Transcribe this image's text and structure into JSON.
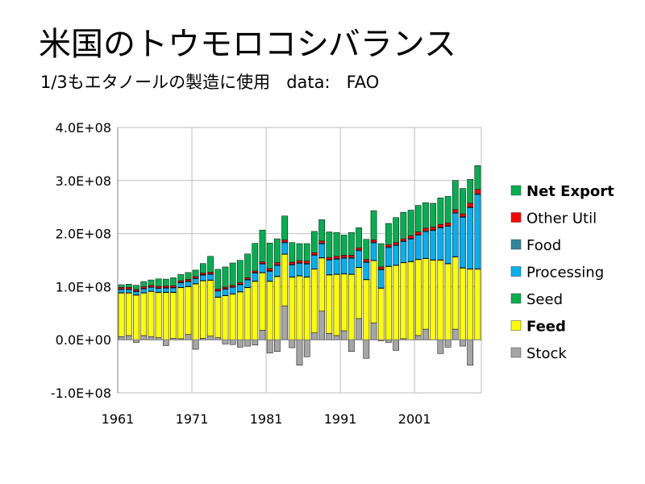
{
  "title": "米国のトウモロコシバランス",
  "subtitle": "1/3もエタノールの製造に使用   data:   FAO",
  "chart_data": {
    "type": "bar",
    "stacked": true,
    "title": "米国のトウモロコシバランス",
    "subtitle": "1/3もエタノールの製造に使用   data:   FAO",
    "xlabel": "",
    "ylabel": "",
    "ylim": [
      -100000000,
      400000000
    ],
    "yticks": [
      -100000000,
      0,
      100000000,
      200000000,
      300000000,
      400000000
    ],
    "ytick_labels": [
      "-1.0E+08",
      "0.0E+00",
      "1.0E+08",
      "2.0E+08",
      "3.0E+08",
      "4.0E+08"
    ],
    "xtick_labels": [
      "1961",
      "1971",
      "1981",
      "1991",
      "2001"
    ],
    "grid": true,
    "legend_position": "right",
    "categories": [
      1961,
      1962,
      1963,
      1964,
      1965,
      1966,
      1967,
      1968,
      1969,
      1970,
      1971,
      1972,
      1973,
      1974,
      1975,
      1976,
      1977,
      1978,
      1979,
      1980,
      1981,
      1982,
      1983,
      1984,
      1985,
      1986,
      1987,
      1988,
      1989,
      1990,
      1991,
      1992,
      1993,
      1994,
      1995,
      1996,
      1997,
      1998,
      1999,
      2000,
      2001,
      2002,
      2003,
      2004,
      2005,
      2006,
      2007,
      2008,
      2009
    ],
    "series": [
      {
        "name": "Stock",
        "color": "#a6a6a6",
        "values": [
          6000000,
          8000000,
          -5000000,
          8000000,
          6000000,
          4000000,
          -11000000,
          3000000,
          2000000,
          10000000,
          -18000000,
          3000000,
          7000000,
          4000000,
          -8000000,
          -9000000,
          -14000000,
          -12000000,
          -10000000,
          18000000,
          -25000000,
          -22000000,
          64000000,
          -15000000,
          -48000000,
          -32000000,
          13000000,
          54000000,
          12000000,
          8000000,
          17000000,
          -22000000,
          40000000,
          -35000000,
          32000000,
          -2000000,
          -5000000,
          -20000000,
          2000000,
          0,
          8000000,
          20000000,
          0,
          -26000000,
          -14000000,
          20000000,
          -12000000,
          -48000000,
          0
        ]
      },
      {
        "name": "Feed",
        "color": "#ffff00",
        "values": [
          82000000,
          80000000,
          84000000,
          80000000,
          85000000,
          85000000,
          89000000,
          86000000,
          96000000,
          90000000,
          105000000,
          108000000,
          105000000,
          76000000,
          83000000,
          86000000,
          90000000,
          98000000,
          110000000,
          108000000,
          110000000,
          119000000,
          97000000,
          118000000,
          120000000,
          118000000,
          120000000,
          100000000,
          110000000,
          115000000,
          107000000,
          123000000,
          96000000,
          113000000,
          117000000,
          97000000,
          138000000,
          140000000,
          143000000,
          147000000,
          143000000,
          133000000,
          150000000,
          150000000,
          143000000,
          136000000,
          135000000,
          133000000,
          133000000
        ]
      },
      {
        "name": "Seed",
        "color": "#00b050",
        "values": [
          700000,
          700000,
          700000,
          700000,
          700000,
          700000,
          700000,
          700000,
          700000,
          700000,
          700000,
          700000,
          700000,
          700000,
          700000,
          700000,
          700000,
          700000,
          700000,
          700000,
          700000,
          700000,
          700000,
          700000,
          700000,
          700000,
          700000,
          700000,
          700000,
          700000,
          700000,
          700000,
          700000,
          700000,
          700000,
          700000,
          700000,
          700000,
          700000,
          700000,
          700000,
          700000,
          700000,
          700000,
          700000,
          700000,
          700000,
          700000,
          700000
        ]
      },
      {
        "name": "Processing",
        "color": "#00b0f0",
        "values": [
          6000000,
          6000000,
          6000000,
          7000000,
          7000000,
          7000000,
          7500000,
          8000000,
          8500000,
          9000000,
          9500000,
          10000000,
          10500000,
          11000000,
          11500000,
          12000000,
          13000000,
          14000000,
          15000000,
          16000000,
          18000000,
          20000000,
          21000000,
          22000000,
          23000000,
          24000000,
          25000000,
          26000000,
          27000000,
          28000000,
          29000000,
          30000000,
          31000000,
          32000000,
          33000000,
          34000000,
          35000000,
          37000000,
          39000000,
          42000000,
          45000000,
          50000000,
          55000000,
          60000000,
          70000000,
          82000000,
          95000000,
          115000000,
          140000000
        ]
      },
      {
        "name": "Food",
        "color": "#31859c",
        "values": [
          1000000,
          1000000,
          1000000,
          1000000,
          1000000,
          1000000,
          1000000,
          1000000,
          1000000,
          1000000,
          1000000,
          1000000,
          1000000,
          1000000,
          1000000,
          1000000,
          1000000,
          1000000,
          1000000,
          1000000,
          1500000,
          1500000,
          1500000,
          1500000,
          1500000,
          1500000,
          1500000,
          1500000,
          1500000,
          1500000,
          1500000,
          1500000,
          1500000,
          1500000,
          1500000,
          1500000,
          1500000,
          1500000,
          1500000,
          1500000,
          1500000,
          1500000,
          1500000,
          1500000,
          1500000,
          1500000,
          1500000,
          1500000,
          1500000
        ]
      },
      {
        "name": "Other Util",
        "color": "#ff0000",
        "values": [
          3000000,
          3000000,
          3000000,
          3000000,
          3000000,
          3000000,
          3000000,
          3000000,
          3000000,
          3000000,
          3000000,
          3000000,
          3000000,
          3000000,
          3000000,
          3000000,
          3000000,
          3000000,
          3000000,
          3000000,
          4000000,
          4000000,
          4000000,
          4000000,
          4000000,
          4000000,
          4000000,
          4000000,
          4000000,
          4000000,
          4000000,
          4000000,
          4000000,
          4000000,
          4000000,
          4000000,
          4000000,
          4000000,
          4000000,
          5000000,
          5000000,
          5000000,
          5000000,
          5000000,
          5000000,
          5000000,
          5000000,
          7000000,
          8000000
        ]
      },
      {
        "name": "Net Export",
        "color": "#00b050",
        "values": [
          5000000,
          6000000,
          8000000,
          10000000,
          10000000,
          14000000,
          13000000,
          15000000,
          12000000,
          13000000,
          12000000,
          18000000,
          30000000,
          37000000,
          38000000,
          42000000,
          42000000,
          45000000,
          52000000,
          60000000,
          48000000,
          45000000,
          45000000,
          37000000,
          32000000,
          33000000,
          40000000,
          40000000,
          48000000,
          45000000,
          38000000,
          43000000,
          38000000,
          38000000,
          55000000,
          44000000,
          40000000,
          47000000,
          50000000,
          48000000,
          50000000,
          48000000,
          45000000,
          50000000,
          50000000,
          55000000,
          48000000,
          45000000,
          45000000
        ]
      }
    ]
  },
  "legend": [
    {
      "label": "Net Export",
      "color": "#00b050",
      "bold": true
    },
    {
      "label": "Other Util",
      "color": "#ff0000",
      "bold": false
    },
    {
      "label": "Food",
      "color": "#31859c",
      "bold": false
    },
    {
      "label": "Processing",
      "color": "#00b0f0",
      "bold": false
    },
    {
      "label": "Seed",
      "color": "#00b050",
      "bold": false
    },
    {
      "label": "Feed",
      "color": "#ffff00",
      "bold": true
    },
    {
      "label": "Stock",
      "color": "#a6a6a6",
      "bold": false
    }
  ]
}
